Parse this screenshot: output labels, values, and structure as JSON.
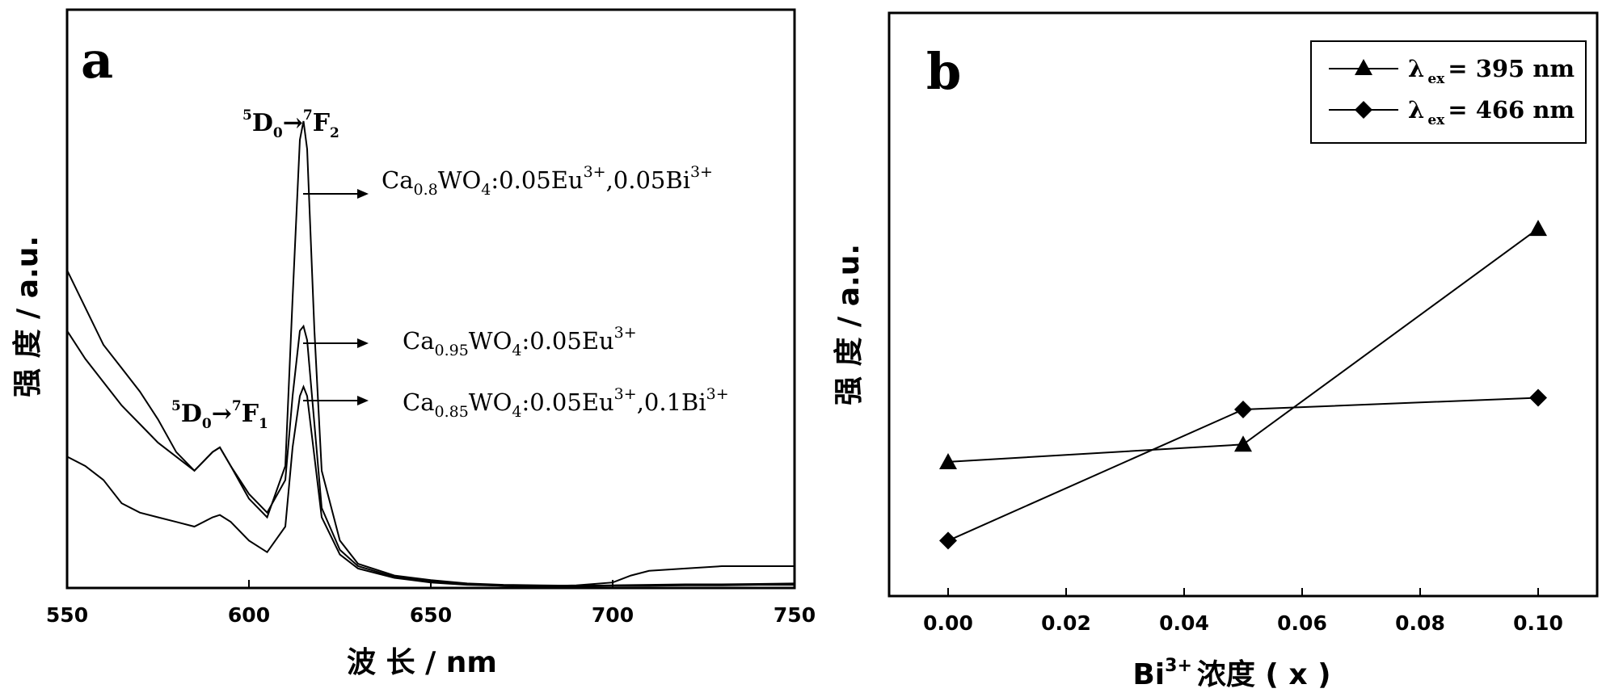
{
  "chart_data": [
    {
      "type": "line",
      "panel_label": "a",
      "xlabel": "波 长 / nm",
      "ylabel": "强 度 / a.u.",
      "xlim": [
        550,
        750
      ],
      "xticks": [
        "550",
        "600",
        "650",
        "700",
        "750"
      ],
      "xticks_values": [
        550,
        600,
        650,
        700,
        750
      ],
      "ylim": [
        0,
        1
      ],
      "yticks_shown": false,
      "grid": false,
      "annotations": {
        "t1": {
          "pre": "5",
          "a": "D",
          "sa": "0",
          "arrow": "→",
          "pre2": "7",
          "b": "F",
          "sb": "2"
        },
        "t2": {
          "pre": "5",
          "a": "D",
          "sa": "0",
          "arrow": "→",
          "pre2": "7",
          "b": "F",
          "sb": "1"
        },
        "s1": {
          "p1": "Ca",
          "sub1": "0.8",
          "p2": "WO",
          "sub2": "4",
          "p3": ":0.05Eu",
          "sup1": "3+",
          "p4": ",0.05Bi",
          "sup2": "3+"
        },
        "s2": {
          "p1": "Ca",
          "sub1": "0.95",
          "p2": "WO",
          "sub2": "4",
          "p3": ":0.05Eu",
          "sup1": "3+"
        },
        "s3": {
          "p1": "Ca",
          "sub1": "0.85",
          "p2": "WO",
          "sub2": "4",
          "p3": ":0.05Eu",
          "sup1": "3+",
          "p4": ",0.1Bi",
          "sup2": "3+"
        }
      },
      "series": [
        {
          "x": [
            550,
            555,
            560,
            565,
            570,
            575,
            580,
            585,
            590,
            592,
            595,
            600,
            605,
            610,
            612,
            614,
            615,
            616,
            618,
            620,
            625,
            630,
            640,
            650,
            660,
            670,
            680,
            690,
            700,
            710,
            720,
            730,
            740,
            750
          ],
          "y": [
            0.68,
            0.6,
            0.52,
            0.47,
            0.42,
            0.36,
            0.29,
            0.25,
            0.29,
            0.3,
            0.26,
            0.19,
            0.15,
            0.26,
            0.62,
            0.96,
            1.0,
            0.94,
            0.55,
            0.25,
            0.1,
            0.05,
            0.025,
            0.015,
            0.008,
            0.005,
            0.004,
            0.003,
            0.004,
            0.005,
            0.006,
            0.006,
            0.007,
            0.008
          ]
        },
        {
          "x": [
            550,
            555,
            560,
            565,
            570,
            575,
            580,
            585,
            590,
            592,
            595,
            600,
            605,
            610,
            612,
            614,
            615,
            616,
            618,
            620,
            625,
            630,
            640,
            650,
            660,
            670,
            680,
            690,
            700,
            710,
            720,
            730,
            740,
            750
          ],
          "y": [
            0.55,
            0.49,
            0.44,
            0.39,
            0.35,
            0.31,
            0.28,
            0.25,
            0.29,
            0.3,
            0.26,
            0.2,
            0.16,
            0.23,
            0.41,
            0.55,
            0.56,
            0.53,
            0.35,
            0.17,
            0.08,
            0.045,
            0.022,
            0.012,
            0.006,
            0.003,
            0.002,
            0.002,
            0.003,
            0.003,
            0.004,
            0.004,
            0.005,
            0.005
          ]
        },
        {
          "x": [
            550,
            555,
            560,
            565,
            570,
            575,
            580,
            585,
            590,
            592,
            595,
            600,
            605,
            610,
            612,
            614,
            615,
            616,
            618,
            620,
            625,
            630,
            640,
            650,
            660,
            670,
            680,
            690,
            700,
            705,
            710,
            720,
            730,
            740,
            750
          ],
          "y": [
            0.28,
            0.26,
            0.23,
            0.18,
            0.16,
            0.15,
            0.14,
            0.13,
            0.15,
            0.155,
            0.14,
            0.1,
            0.075,
            0.13,
            0.3,
            0.41,
            0.43,
            0.41,
            0.28,
            0.15,
            0.07,
            0.04,
            0.02,
            0.01,
            0.005,
            0.003,
            0.002,
            0.004,
            0.01,
            0.025,
            0.035,
            0.04,
            0.045,
            0.045,
            0.045
          ]
        }
      ]
    },
    {
      "type": "line",
      "panel_label": "b",
      "xlabel": "浓度 ( x )",
      "xlabel_prefix": "Bi",
      "xlabel_sup": "3+",
      "ylabel": "强 度 / a.u.",
      "xlim": [
        -0.01,
        0.11
      ],
      "xticks": [
        "0.00",
        "0.02",
        "0.04",
        "0.06",
        "0.08",
        "0.10"
      ],
      "xticks_values": [
        0,
        0.02,
        0.04,
        0.06,
        0.08,
        0.1
      ],
      "ylim": [
        0,
        1
      ],
      "yticks_shown": false,
      "grid": false,
      "legend_position": "top-right",
      "categories": [
        0,
        0.05,
        0.1
      ],
      "series": [
        {
          "marker": "triangle",
          "name_main": "λ",
          "name_sub": "ex",
          "name_value": "= 395 nm",
          "x": [
            0,
            0.05,
            0.1
          ],
          "y": [
            0.23,
            0.26,
            0.63
          ]
        },
        {
          "marker": "diamond",
          "name_main": "λ",
          "name_sub": "ex",
          "name_value": "= 466 nm",
          "x": [
            0,
            0.05,
            0.1
          ],
          "y": [
            0.095,
            0.32,
            0.34
          ]
        }
      ]
    }
  ]
}
